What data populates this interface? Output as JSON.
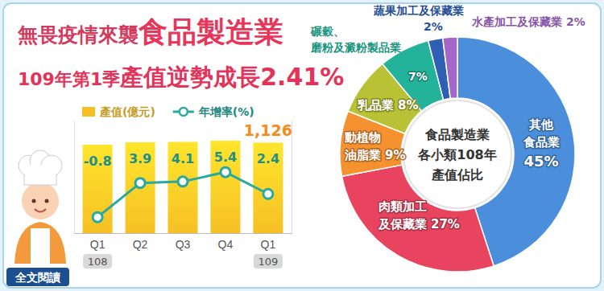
{
  "header": {
    "title_parts": [
      "無畏疫情來襲",
      "食品製造業"
    ],
    "subtitle_parts": [
      "109年第1季",
      "產值逆勢成長",
      "2.41%"
    ]
  },
  "chart_data": [
    {
      "type": "bar",
      "categories": [
        "Q1",
        "Q2",
        "Q3",
        "Q4",
        "Q1"
      ],
      "category_years": [
        "108",
        null,
        null,
        null,
        "109"
      ],
      "series": [
        {
          "name": "產值(億元)",
          "type": "bar",
          "color": "#f6c025",
          "values": [
            1100,
            1130,
            1135,
            1150,
            1126
          ],
          "value_labels": [
            null,
            null,
            null,
            null,
            "1,126"
          ]
        },
        {
          "name": "年增率(%)",
          "type": "line",
          "axis": "y2",
          "color": "#2aa9a1",
          "marker": "circle",
          "line_style": "solid",
          "data_labels": true,
          "values": [
            -0.8,
            3.9,
            4.1,
            5.4,
            2.4
          ]
        }
      ],
      "ylim": [
        0,
        1400
      ],
      "y2lim": [
        -3,
        12.5
      ],
      "tick_labels": "x",
      "legend": "top",
      "grid": false
    },
    {
      "type": "donut",
      "title": "食品製造業\n各小類108年\n產值佔比",
      "categories": [
        "其他\n食品業",
        "肉類加工\n及保藏業",
        "動植物\n油脂業",
        "乳品業",
        "碾穀、\n磨粉及澱粉製品業",
        "蔬果加工及保藏業",
        "水產加工及保藏業"
      ],
      "values": [
        45,
        27,
        9,
        8,
        7,
        2,
        2
      ],
      "value_labels": [
        "45%",
        "27%",
        "9%",
        "8%",
        "7%",
        "2%",
        "2%"
      ],
      "colors": [
        "#4b8fdc",
        "#e9445f",
        "#f5922f",
        "#b8c234",
        "#22b39a",
        "#2f5fb4",
        "#a366c9"
      ]
    }
  ],
  "footer": {
    "link_text": "全文閱讀"
  }
}
